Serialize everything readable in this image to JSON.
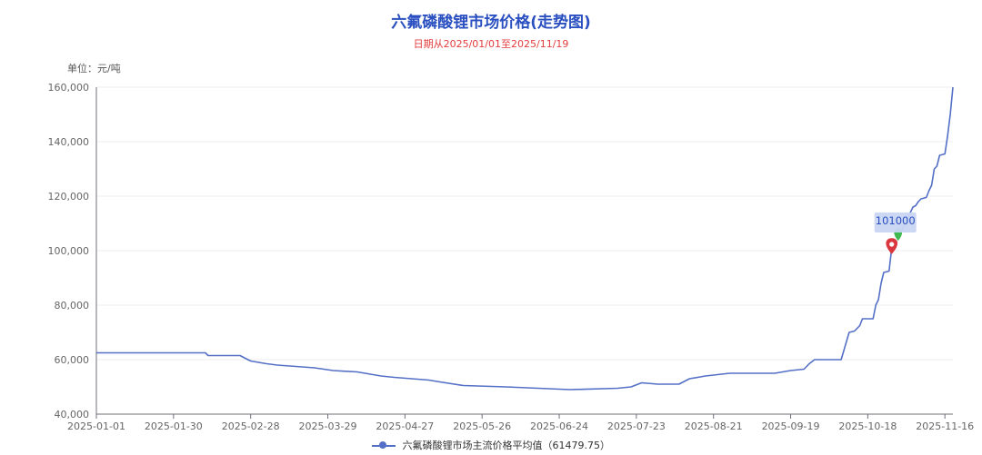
{
  "header": {
    "title": "六氟磷酸锂市场价格(走势图)",
    "subtitle": "日期从2025/01/01至2025/11/19",
    "unit": "单位：元/吨"
  },
  "legend": {
    "label": "六氟磷酸锂市场主流价格平均值（61479.75）"
  },
  "colors": {
    "series": "#5470c6",
    "title": "#2a4fc0",
    "subtitle": "#e43c3c",
    "marker_red": "#d9363e",
    "marker_green": "#3fb950",
    "callout_bg": "#c9d5f3"
  },
  "chart_data": {
    "type": "line",
    "title": "六氟磷酸锂市场价格(走势图)",
    "subtitle": "日期从2025/01/01至2025/11/19",
    "ylabel": "单位：元/吨",
    "xlabel": "",
    "ylim": [
      40000,
      160000
    ],
    "xlim": [
      "2025-01-01",
      "2025-11-19"
    ],
    "x_ticks": [
      "2025-01-01",
      "2025-01-30",
      "2025-02-28",
      "2025-03-29",
      "2025-04-27",
      "2025-05-26",
      "2025-06-24",
      "2025-07-23",
      "2025-08-21",
      "2025-09-19",
      "2025-10-18",
      "2025-11-16"
    ],
    "y_ticks": [
      40000,
      60000,
      80000,
      100000,
      120000,
      140000,
      160000
    ],
    "y_tick_labels": [
      "40,000",
      "60,000",
      "80,000",
      "100,000",
      "120,000",
      "140,000",
      "160,000"
    ],
    "grid": "horizontal",
    "legend_position": "bottom",
    "series": [
      {
        "name": "六氟磷酸锂市场主流价格平均值（61479.75）",
        "points": [
          [
            "2025-01-01",
            62500
          ],
          [
            "2025-02-11",
            62500
          ],
          [
            "2025-02-12",
            61500
          ],
          [
            "2025-02-24",
            61500
          ],
          [
            "2025-02-26",
            60500
          ],
          [
            "2025-02-28",
            59500
          ],
          [
            "2025-03-06",
            58500
          ],
          [
            "2025-03-10",
            58000
          ],
          [
            "2025-03-24",
            57000
          ],
          [
            "2025-03-31",
            56000
          ],
          [
            "2025-04-09",
            55500
          ],
          [
            "2025-04-18",
            54000
          ],
          [
            "2025-04-23",
            53500
          ],
          [
            "2025-05-06",
            52500
          ],
          [
            "2025-05-09",
            52000
          ],
          [
            "2025-05-19",
            50500
          ],
          [
            "2025-06-04",
            50000
          ],
          [
            "2025-06-28",
            49000
          ],
          [
            "2025-07-16",
            49500
          ],
          [
            "2025-07-21",
            50000
          ],
          [
            "2025-07-25",
            51500
          ],
          [
            "2025-07-31",
            51000
          ],
          [
            "2025-08-08",
            51000
          ],
          [
            "2025-08-12",
            53000
          ],
          [
            "2025-08-18",
            54000
          ],
          [
            "2025-08-27",
            55000
          ],
          [
            "2025-09-13",
            55000
          ],
          [
            "2025-09-16",
            55500
          ],
          [
            "2025-09-19",
            56000
          ],
          [
            "2025-09-24",
            56500
          ],
          [
            "2025-09-26",
            58500
          ],
          [
            "2025-09-28",
            60000
          ],
          [
            "2025-10-08",
            60000
          ],
          [
            "2025-10-11",
            70000
          ],
          [
            "2025-10-13",
            70500
          ],
          [
            "2025-10-15",
            72500
          ],
          [
            "2025-10-16",
            75000
          ],
          [
            "2025-10-20",
            75000
          ],
          [
            "2025-10-21",
            80000
          ],
          [
            "2025-10-22",
            82000
          ],
          [
            "2025-10-23",
            88000
          ],
          [
            "2025-10-24",
            92000
          ],
          [
            "2025-10-26",
            92500
          ],
          [
            "2025-10-27",
            101000
          ],
          [
            "2025-10-29",
            103500
          ],
          [
            "2025-10-31",
            108000
          ],
          [
            "2025-11-03",
            114000
          ],
          [
            "2025-11-04",
            116000
          ],
          [
            "2025-11-05",
            116500
          ],
          [
            "2025-11-06",
            118000
          ],
          [
            "2025-11-07",
            119000
          ],
          [
            "2025-11-09",
            119500
          ],
          [
            "2025-11-10",
            122000
          ],
          [
            "2025-11-11",
            124000
          ],
          [
            "2025-11-12",
            130000
          ],
          [
            "2025-11-13",
            131000
          ],
          [
            "2025-11-14",
            135000
          ],
          [
            "2025-11-16",
            135500
          ],
          [
            "2025-11-17",
            142000
          ],
          [
            "2025-11-18",
            150000
          ],
          [
            "2025-11-19",
            160000
          ]
        ]
      }
    ],
    "annotations": [
      {
        "date": "2025-10-27",
        "value": 101000,
        "label": "101000",
        "marker": "red-pin"
      }
    ]
  }
}
